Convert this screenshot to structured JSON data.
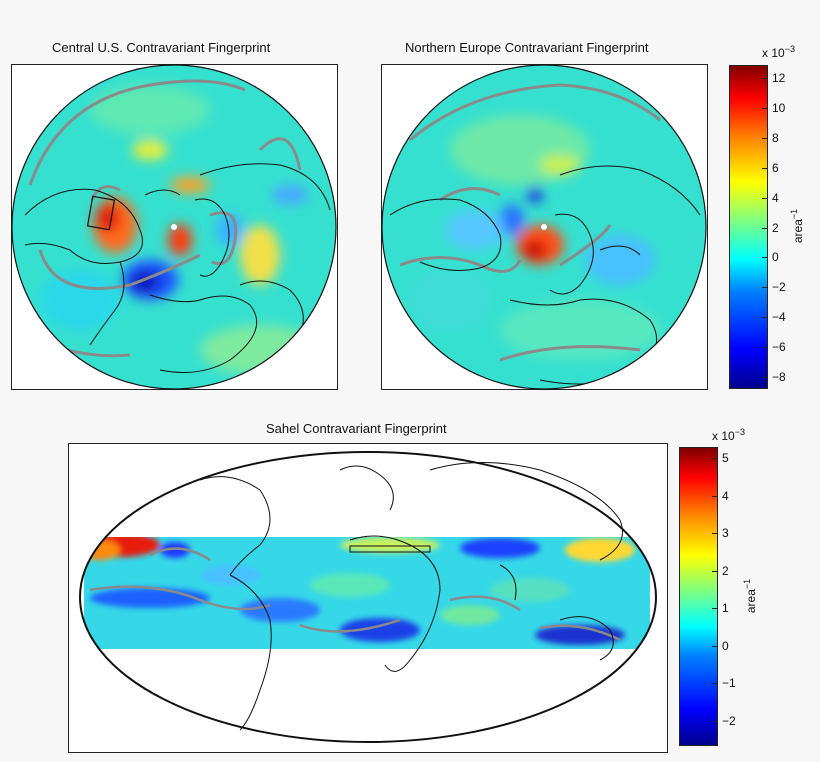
{
  "panels": {
    "central_us": {
      "title": "Central U.S. Contravariant Fingerprint"
    },
    "northern_europe": {
      "title": "Northern Europe Contravariant Fingerprint"
    },
    "sahel": {
      "title": "Sahel Contravariant Fingerprint"
    }
  },
  "colorbar_top": {
    "exponent_base": "x 10",
    "exponent_power": "−3",
    "unit_base": "area",
    "unit_power": "−1",
    "ticks": [
      "12",
      "10",
      "8",
      "6",
      "4",
      "2",
      "0",
      "−2",
      "−4",
      "−6",
      "−8"
    ]
  },
  "colorbar_bottom": {
    "exponent_base": "x 10",
    "exponent_power": "−3",
    "unit_base": "area",
    "unit_power": "−1",
    "ticks": [
      "5",
      "4",
      "3",
      "2",
      "1",
      "0",
      "−1",
      "−2"
    ]
  },
  "colors": {
    "background": "#f7f7f7",
    "field_base": "#36e0cf",
    "contour": "#8a8a8a",
    "coast": "#111111",
    "jet": [
      "#00008f",
      "#0000ff",
      "#0080ff",
      "#00ffff",
      "#80ff80",
      "#ffff00",
      "#ff8000",
      "#ff0000",
      "#800000"
    ]
  }
}
